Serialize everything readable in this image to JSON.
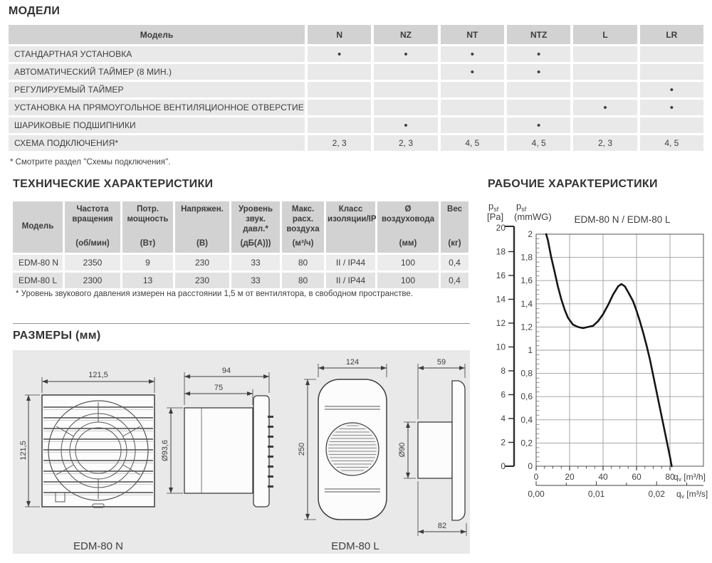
{
  "models_section": {
    "title": "МОДЕЛИ",
    "table": {
      "feature_header": "Модель",
      "model_columns": [
        "N",
        "NZ",
        "NT",
        "NTZ",
        "L",
        "LR"
      ],
      "rows": [
        {
          "label": "СТАНДАРТНАЯ УСТАНОВКА",
          "values": [
            "•",
            "•",
            "•",
            "•",
            "",
            ""
          ]
        },
        {
          "label": "АВТОМАТИЧЕСКИЙ ТАЙМЕР (8 МИН.)",
          "values": [
            "",
            "",
            "•",
            "•",
            "",
            ""
          ]
        },
        {
          "label": "РЕГУЛИРУЕМЫЙ ТАЙМЕР",
          "values": [
            "",
            "",
            "",
            "",
            "",
            "•"
          ]
        },
        {
          "label": "УСТАНОВКА НА ПРЯМОУГОЛЬНОЕ ВЕНТИЛЯЦИОННОЕ ОТВЕРСТИЕ",
          "values": [
            "",
            "",
            "",
            "",
            "•",
            "•"
          ]
        },
        {
          "label": "ШАРИКОВЫЕ ПОДШИПНИКИ",
          "values": [
            "",
            "•",
            "",
            "•",
            "",
            ""
          ]
        },
        {
          "label": "СХЕМА ПОДКЛЮЧЕНИЯ*",
          "values": [
            "2, 3",
            "2, 3",
            "4, 5",
            "4, 5",
            "2, 3",
            "4, 5"
          ]
        }
      ]
    },
    "footnote": "* Смотрите раздел ''Схемы подключения''."
  },
  "tech_section": {
    "title": "ТЕХНИЧЕСКИЕ ХАРАКТЕРИСТИКИ",
    "table": {
      "headers": [
        {
          "name": "Модель",
          "unit": ""
        },
        {
          "name": "Частота вращения",
          "unit": "(об/мин)"
        },
        {
          "name": "Потр. мощность",
          "unit": "(Вт)"
        },
        {
          "name": "Напряжен.",
          "unit": "(В)"
        },
        {
          "name": "Уровень звук. давл.*",
          "unit": "(дБ(А)))"
        },
        {
          "name": "Макс. расх. воздуха",
          "unit": "(м³/ч)"
        },
        {
          "name": "Класс изоляции/IP",
          "unit": ""
        },
        {
          "name": "Ø воздуховода",
          "unit": "(мм)"
        },
        {
          "name": "Вес",
          "unit": "(кг)"
        }
      ],
      "rows": [
        [
          "EDM-80 N",
          "2350",
          "9",
          "230",
          "33",
          "80",
          "II / IP44",
          "100",
          "0,4"
        ],
        [
          "EDM-80 L",
          "2300",
          "13",
          "230",
          "33",
          "80",
          "II / IP44",
          "100",
          "0,4"
        ]
      ]
    },
    "footnote": "* Уровень звукового давления измерен на расстоянии 1,5 м от вентилятора, в свободном пространстве."
  },
  "dimensions_section": {
    "title": "РАЗМЕРЫ (мм)",
    "front_n": {
      "width": "121,5",
      "height": "121,5"
    },
    "side_n": {
      "total": "94",
      "duct": "75",
      "diameter": "Ø93,6"
    },
    "front_l": {
      "width": "124",
      "height": "250"
    },
    "side_l": {
      "front_depth": "59",
      "diameter": "Ø90",
      "total_depth": "82"
    },
    "label_n": "EDM-80 N",
    "label_l": "EDM-80 L"
  },
  "performance_section": {
    "title": "РАБОЧИЕ ХАРАКТЕРИСТИКИ",
    "pressure_symbol": "p",
    "pressure_sub": "sf",
    "pa_unit": "[Pa]",
    "mmwg_unit": "(mmWG)",
    "flow_symbol": "q",
    "flow_sub": "v",
    "flow_unit_h": "[m³/h]",
    "flow_unit_s": "[m³/s]"
  },
  "chart_data": {
    "type": "line",
    "title": "EDM-80 N / EDM-80 L",
    "x_axis_primary": {
      "label": "qv [m³/h]",
      "ticks": [
        0,
        20,
        40,
        60,
        80
      ],
      "range": [
        0,
        100
      ],
      "minor_step": 5
    },
    "x_axis_secondary": {
      "label": "qv [m³/s]",
      "ticks": [
        "0,00",
        "0,01",
        "0,02"
      ]
    },
    "y_axis_pa": {
      "label": "psf [Pa]",
      "ticks": [
        20,
        18,
        16,
        14,
        12,
        10,
        8,
        6,
        4,
        2,
        0
      ],
      "range": [
        0,
        20
      ]
    },
    "y_axis_mmwg": {
      "label": "psf (mmWG)",
      "ticks": [
        "2",
        "1,8",
        "1,6",
        "1,4",
        "1,2",
        "1",
        "0,8",
        "0,6",
        "0,4",
        "0,2",
        "0"
      ],
      "range": [
        0,
        2
      ]
    },
    "grid": true,
    "series": [
      {
        "name": "EDM-80 N / EDM-80 L",
        "points_q_m3h_vs_p_mmwg": [
          [
            6,
            2.0
          ],
          [
            7,
            1.95
          ],
          [
            9,
            1.8
          ],
          [
            11,
            1.68
          ],
          [
            13,
            1.55
          ],
          [
            15,
            1.44
          ],
          [
            17,
            1.35
          ],
          [
            19,
            1.28
          ],
          [
            22,
            1.22
          ],
          [
            25,
            1.2
          ],
          [
            28,
            1.19
          ],
          [
            31,
            1.2
          ],
          [
            34,
            1.21
          ],
          [
            37,
            1.25
          ],
          [
            40,
            1.31
          ],
          [
            43,
            1.39
          ],
          [
            46,
            1.48
          ],
          [
            49,
            1.55
          ],
          [
            51,
            1.57
          ],
          [
            53,
            1.55
          ],
          [
            55,
            1.5
          ],
          [
            58,
            1.42
          ],
          [
            60,
            1.34
          ],
          [
            62,
            1.25
          ],
          [
            64,
            1.15
          ],
          [
            66,
            1.04
          ],
          [
            68,
            0.92
          ],
          [
            70,
            0.78
          ],
          [
            72,
            0.64
          ],
          [
            74,
            0.5
          ],
          [
            76,
            0.36
          ],
          [
            78,
            0.22
          ],
          [
            80,
            0.08
          ],
          [
            81,
            0
          ]
        ]
      }
    ]
  }
}
